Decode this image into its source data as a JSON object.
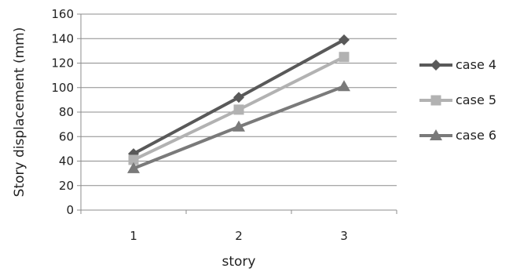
{
  "chart_data": {
    "type": "line",
    "title": "",
    "xlabel": "story",
    "ylabel": "Story displacement  (mm)",
    "categories": [
      "1",
      "2",
      "3"
    ],
    "ylim": [
      0,
      160
    ],
    "yticks": [
      "0",
      "20",
      "40",
      "60",
      "80",
      "100",
      "120",
      "140",
      "160"
    ],
    "grid": "horizontal",
    "legend_position": "right",
    "series": [
      {
        "name": "case 4",
        "values": [
          46,
          92,
          139
        ],
        "color": "#595959",
        "marker": "diamond"
      },
      {
        "name": "case 5",
        "values": [
          41,
          82,
          125
        ],
        "color": "#b2b2b2",
        "marker": "square"
      },
      {
        "name": "case 6",
        "values": [
          34,
          68,
          101
        ],
        "color": "#7a7a7a",
        "marker": "triangle"
      }
    ]
  }
}
